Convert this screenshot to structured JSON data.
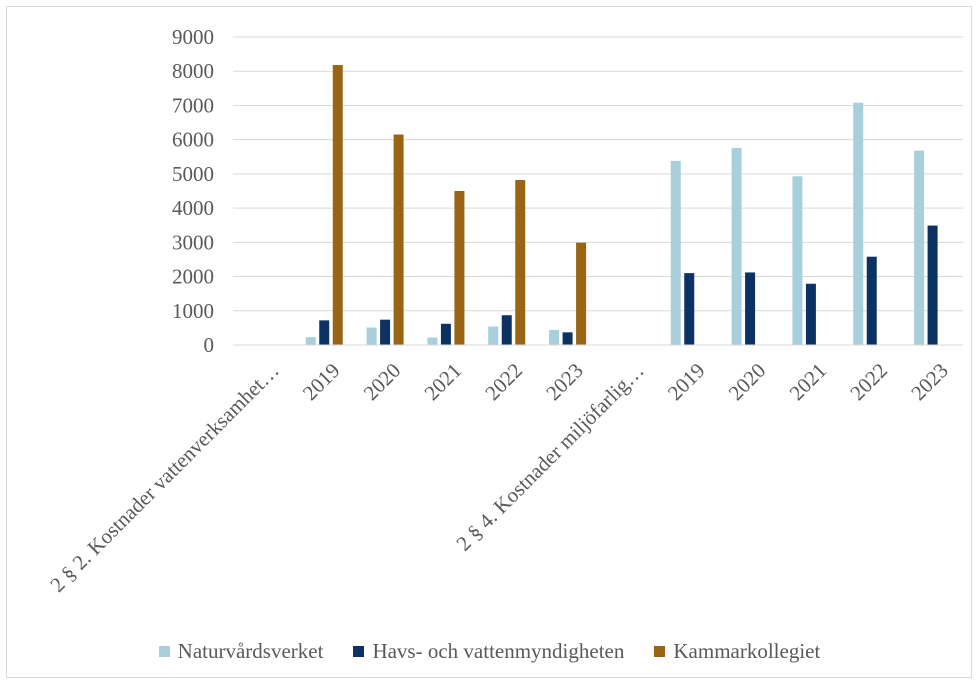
{
  "chart_data": {
    "type": "bar",
    "categories": [
      "2 § 2. Kostnader vattenverksamhet…",
      "2019",
      "2020",
      "2021",
      "2022",
      "2023",
      "2 § 4. Kostnader miljöfarlig…",
      "2019",
      "2020",
      "2021",
      "2022",
      "2023"
    ],
    "series": [
      {
        "name": "Naturvårdsverket",
        "color": "#a9cfdc",
        "values": [
          null,
          230,
          510,
          220,
          540,
          440,
          null,
          5380,
          5760,
          4930,
          7080,
          5680
        ]
      },
      {
        "name": "Havs- och vattenmyndigheten",
        "color": "#0b3262",
        "values": [
          null,
          720,
          740,
          620,
          870,
          370,
          null,
          2100,
          2120,
          1790,
          2580,
          3490
        ]
      },
      {
        "name": "Kammarkollegiet",
        "color": "#996515",
        "values": [
          null,
          8180,
          6150,
          4500,
          4820,
          2990,
          null,
          null,
          null,
          null,
          null,
          null
        ]
      }
    ],
    "yticks": [
      "0",
      "1000",
      "2000",
      "3000",
      "4000",
      "5000",
      "6000",
      "7000",
      "8000",
      "9000"
    ],
    "ylim": [
      0,
      9000
    ],
    "grid": true,
    "legend": "bottom"
  }
}
